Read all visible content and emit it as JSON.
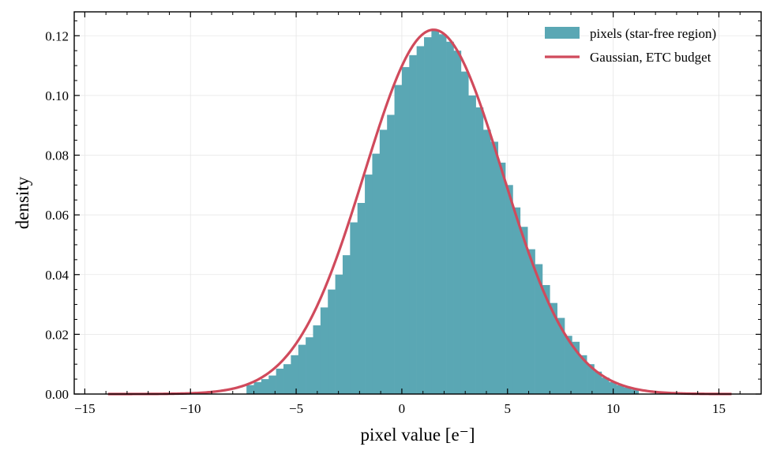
{
  "chart_data": {
    "type": "bar",
    "xlabel": "pixel value [e⁻]",
    "ylabel": "density",
    "xlim": [
      -15.5,
      17.0
    ],
    "ylim": [
      0.0,
      0.128
    ],
    "x_ticks": [
      -15,
      -10,
      -5,
      0,
      5,
      10,
      15
    ],
    "x_tick_labels": [
      "−15",
      "−10",
      "−5",
      "0",
      "5",
      "10",
      "15"
    ],
    "y_ticks": [
      0.0,
      0.02,
      0.04,
      0.06,
      0.08,
      0.1,
      0.12
    ],
    "y_tick_labels": [
      "0.00",
      "0.02",
      "0.04",
      "0.06",
      "0.08",
      "0.10",
      "0.12"
    ],
    "grid": true,
    "legend_position": "top-right",
    "series": [
      {
        "name": "pixels (star-free region)",
        "type": "histogram",
        "color": "#5aa7b4",
        "bin_width": 0.35,
        "bins": [
          {
            "x": -7.35,
            "y": 0.003
          },
          {
            "x": -7.0,
            "y": 0.004
          },
          {
            "x": -6.65,
            "y": 0.005
          },
          {
            "x": -6.3,
            "y": 0.0062
          },
          {
            "x": -5.95,
            "y": 0.0085
          },
          {
            "x": -5.6,
            "y": 0.01
          },
          {
            "x": -5.25,
            "y": 0.013
          },
          {
            "x": -4.9,
            "y": 0.0165
          },
          {
            "x": -4.55,
            "y": 0.019
          },
          {
            "x": -4.2,
            "y": 0.023
          },
          {
            "x": -3.85,
            "y": 0.029
          },
          {
            "x": -3.5,
            "y": 0.035
          },
          {
            "x": -3.15,
            "y": 0.04
          },
          {
            "x": -2.8,
            "y": 0.0465
          },
          {
            "x": -2.45,
            "y": 0.0575
          },
          {
            "x": -2.1,
            "y": 0.064
          },
          {
            "x": -1.75,
            "y": 0.0735
          },
          {
            "x": -1.4,
            "y": 0.0805
          },
          {
            "x": -1.05,
            "y": 0.0885
          },
          {
            "x": -0.7,
            "y": 0.0935
          },
          {
            "x": -0.35,
            "y": 0.1035
          },
          {
            "x": 0.0,
            "y": 0.1095
          },
          {
            "x": 0.35,
            "y": 0.1135
          },
          {
            "x": 0.7,
            "y": 0.1165
          },
          {
            "x": 1.05,
            "y": 0.1195
          },
          {
            "x": 1.4,
            "y": 0.122
          },
          {
            "x": 1.75,
            "y": 0.1205
          },
          {
            "x": 2.1,
            "y": 0.118
          },
          {
            "x": 2.45,
            "y": 0.115
          },
          {
            "x": 2.8,
            "y": 0.108
          },
          {
            "x": 3.15,
            "y": 0.1
          },
          {
            "x": 3.5,
            "y": 0.096
          },
          {
            "x": 3.85,
            "y": 0.0885
          },
          {
            "x": 4.2,
            "y": 0.0845
          },
          {
            "x": 4.55,
            "y": 0.0775
          },
          {
            "x": 4.9,
            "y": 0.07
          },
          {
            "x": 5.25,
            "y": 0.0625
          },
          {
            "x": 5.6,
            "y": 0.056
          },
          {
            "x": 5.95,
            "y": 0.0485
          },
          {
            "x": 6.3,
            "y": 0.0435
          },
          {
            "x": 6.65,
            "y": 0.0365
          },
          {
            "x": 7.0,
            "y": 0.0305
          },
          {
            "x": 7.35,
            "y": 0.0255
          },
          {
            "x": 7.7,
            "y": 0.0195
          },
          {
            "x": 8.05,
            "y": 0.0175
          },
          {
            "x": 8.4,
            "y": 0.013
          },
          {
            "x": 8.75,
            "y": 0.01
          },
          {
            "x": 9.1,
            "y": 0.0075
          },
          {
            "x": 9.45,
            "y": 0.0055
          },
          {
            "x": 9.8,
            "y": 0.004
          },
          {
            "x": 10.15,
            "y": 0.003
          },
          {
            "x": 10.5,
            "y": 0.0022
          },
          {
            "x": 10.85,
            "y": 0.0015
          }
        ]
      },
      {
        "name": "Gaussian, ETC budget",
        "type": "line",
        "color": "#d04a5c",
        "function": "gaussian",
        "mean": 1.5,
        "sigma": 3.27,
        "x_range": [
          -13.9,
          15.6
        ]
      }
    ]
  }
}
